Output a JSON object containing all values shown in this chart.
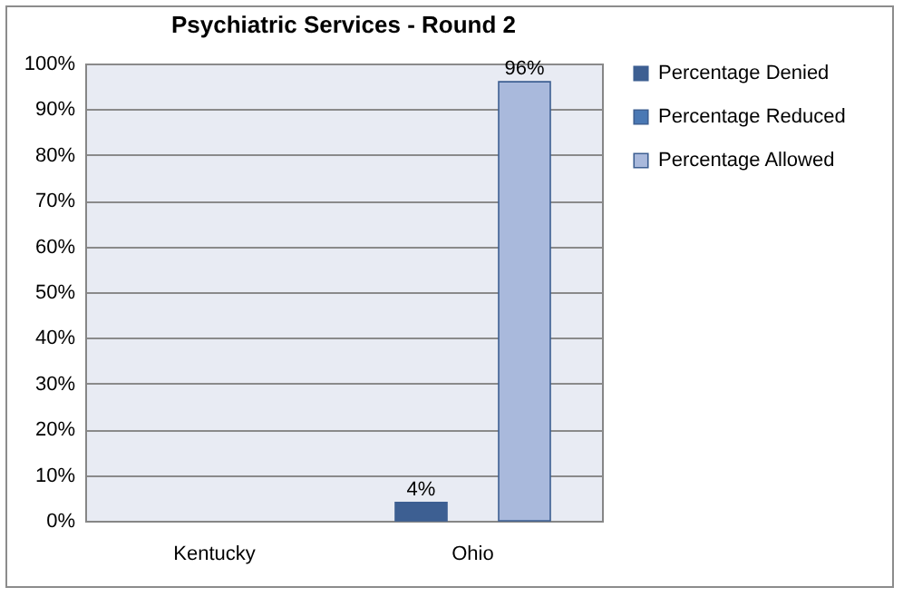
{
  "chart_data": {
    "type": "bar",
    "title": "Psychiatric Services - Round 2",
    "categories": [
      "Kentucky",
      "Ohio"
    ],
    "series": [
      {
        "name": "Percentage Denied",
        "color": "#3d5f92",
        "values": [
          null,
          4
        ],
        "value_labels": [
          null,
          "4%"
        ]
      },
      {
        "name": "Percentage Reduced",
        "color": "#4a78b4",
        "values": [
          null,
          null
        ],
        "value_labels": [
          null,
          null
        ]
      },
      {
        "name": "Percentage Allowed",
        "color": "#a9b9dc",
        "values": [
          null,
          96
        ],
        "value_labels": [
          null,
          "96%"
        ]
      }
    ],
    "ylim": [
      0,
      100
    ],
    "yticks": [
      {
        "value": 0,
        "label": "0%"
      },
      {
        "value": 10,
        "label": "10%"
      },
      {
        "value": 20,
        "label": "20%"
      },
      {
        "value": 30,
        "label": "30%"
      },
      {
        "value": 40,
        "label": "40%"
      },
      {
        "value": 50,
        "label": "50%"
      },
      {
        "value": 60,
        "label": "60%"
      },
      {
        "value": 70,
        "label": "70%"
      },
      {
        "value": 80,
        "label": "80%"
      },
      {
        "value": 90,
        "label": "90%"
      },
      {
        "value": 100,
        "label": "100%"
      }
    ],
    "grid": "y",
    "legend": "right"
  }
}
